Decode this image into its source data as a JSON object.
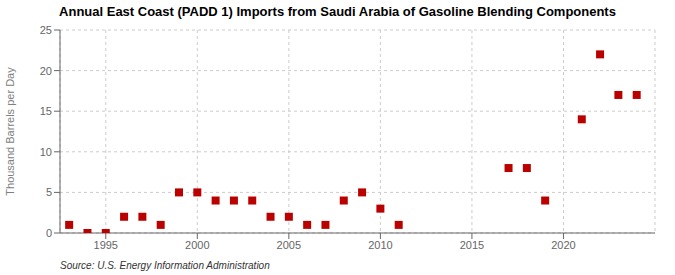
{
  "chart_data": {
    "type": "scatter",
    "title": "Annual East Coast (PADD 1) Imports from Saudi Arabia of Gasoline Blending Components",
    "ylabel": "Thousand Barrels per Day",
    "source": "Source: U.S. Energy Information Administration",
    "x": [
      1993,
      1994,
      1995,
      1996,
      1997,
      1998,
      1999,
      2000,
      2001,
      2002,
      2003,
      2004,
      2005,
      2006,
      2007,
      2008,
      2009,
      2010,
      2011,
      2017,
      2018,
      2019,
      2021,
      2022,
      2023,
      2024
    ],
    "values": [
      1,
      0,
      0,
      2,
      2,
      1,
      5,
      5,
      4,
      4,
      4,
      2,
      2,
      1,
      1,
      4,
      5,
      3,
      1,
      8,
      8,
      4,
      14,
      22,
      17,
      17
    ],
    "color": "#bb0000",
    "marker": "square",
    "xlim": [
      1992.5,
      2025
    ],
    "xticks": [
      1995,
      2000,
      2005,
      2010,
      2015,
      2020
    ],
    "ylim": [
      0,
      25
    ],
    "yticks": [
      0,
      5,
      10,
      15,
      20,
      25
    ],
    "grid": true
  }
}
